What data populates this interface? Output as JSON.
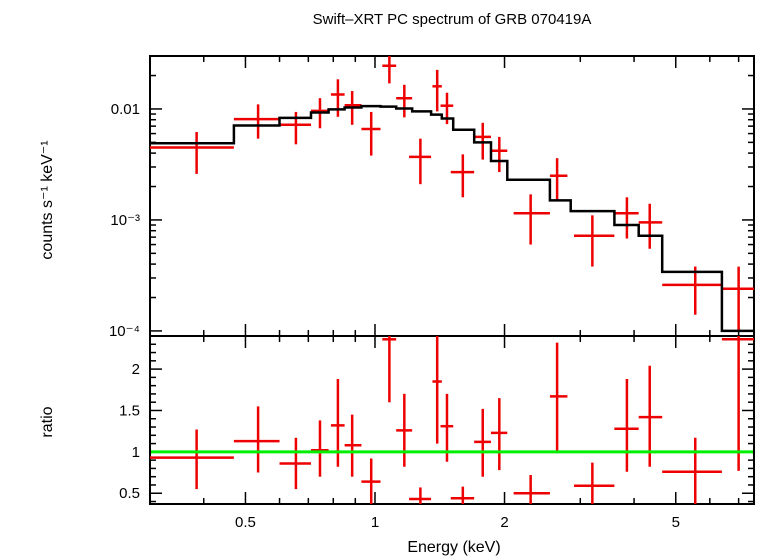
{
  "chart_data": {
    "type": "scatter",
    "title": "Swift–XRT PC spectrum of GRB 070419A",
    "xlabel": "Energy (keV)",
    "xscale": "log",
    "xlim": [
      0.3,
      7.6
    ],
    "x_ticks": [
      {
        "value": 0.5,
        "label": "0.5"
      },
      {
        "value": 1,
        "label": "1"
      },
      {
        "value": 2,
        "label": "2"
      },
      {
        "value": 5,
        "label": "5"
      }
    ],
    "panels": [
      {
        "id": "spectrum",
        "ylabel": "counts s⁻¹ keV⁻¹",
        "yscale": "log",
        "ylim": [
          9e-05,
          0.03
        ],
        "y_ticks": [
          {
            "value": 0.01,
            "label": "0.01"
          },
          {
            "value": 0.001,
            "label": "10⁻³"
          },
          {
            "value": 0.0001,
            "label": "10⁻⁴"
          }
        ],
        "series": [
          {
            "kind": "data",
            "color": "#ee0000",
            "points": [
              {
                "x": 0.385,
                "xlo": 0.3,
                "xhi": 0.47,
                "y": 0.0045,
                "ylo": 0.0026,
                "yhi": 0.0062
              },
              {
                "x": 0.535,
                "xlo": 0.47,
                "xhi": 0.6,
                "y": 0.0081,
                "ylo": 0.0054,
                "yhi": 0.011
              },
              {
                "x": 0.655,
                "xlo": 0.6,
                "xhi": 0.71,
                "y": 0.0072,
                "ylo": 0.0048,
                "yhi": 0.0094
              },
              {
                "x": 0.745,
                "xlo": 0.71,
                "xhi": 0.78,
                "y": 0.0096,
                "ylo": 0.0067,
                "yhi": 0.0125
              },
              {
                "x": 0.82,
                "xlo": 0.79,
                "xhi": 0.85,
                "y": 0.0135,
                "ylo": 0.0085,
                "yhi": 0.0185
              },
              {
                "x": 0.885,
                "xlo": 0.85,
                "xhi": 0.93,
                "y": 0.0108,
                "ylo": 0.0072,
                "yhi": 0.0145
              },
              {
                "x": 0.98,
                "xlo": 0.93,
                "xhi": 1.03,
                "y": 0.0066,
                "ylo": 0.0038,
                "yhi": 0.0094
              },
              {
                "x": 1.08,
                "xlo": 1.04,
                "xhi": 1.12,
                "y": 0.0245,
                "ylo": 0.017,
                "yhi": 0.03
              },
              {
                "x": 1.17,
                "xlo": 1.12,
                "xhi": 1.22,
                "y": 0.0125,
                "ylo": 0.0084,
                "yhi": 0.0165
              },
              {
                "x": 1.275,
                "xlo": 1.2,
                "xhi": 1.35,
                "y": 0.0037,
                "ylo": 0.0021,
                "yhi": 0.0054
              },
              {
                "x": 1.395,
                "xlo": 1.36,
                "xhi": 1.43,
                "y": 0.016,
                "ylo": 0.0095,
                "yhi": 0.0225
              },
              {
                "x": 1.47,
                "xlo": 1.42,
                "xhi": 1.52,
                "y": 0.0107,
                "ylo": 0.0073,
                "yhi": 0.014
              },
              {
                "x": 1.6,
                "xlo": 1.5,
                "xhi": 1.7,
                "y": 0.0027,
                "ylo": 0.0016,
                "yhi": 0.0039
              },
              {
                "x": 1.78,
                "xlo": 1.7,
                "xhi": 1.86,
                "y": 0.0056,
                "ylo": 0.0035,
                "yhi": 0.0075
              },
              {
                "x": 1.945,
                "xlo": 1.86,
                "xhi": 2.03,
                "y": 0.0042,
                "ylo": 0.0027,
                "yhi": 0.0056
              },
              {
                "x": 2.3,
                "xlo": 2.1,
                "xhi": 2.55,
                "y": 0.00115,
                "ylo": 0.0006,
                "yhi": 0.0017
              },
              {
                "x": 2.65,
                "xlo": 2.55,
                "xhi": 2.8,
                "y": 0.0025,
                "ylo": 0.0015,
                "yhi": 0.0036
              },
              {
                "x": 3.2,
                "xlo": 2.9,
                "xhi": 3.6,
                "y": 0.00072,
                "ylo": 0.00038,
                "yhi": 0.0011
              },
              {
                "x": 3.85,
                "xlo": 3.6,
                "xhi": 4.1,
                "y": 0.00115,
                "ylo": 0.00068,
                "yhi": 0.0016
              },
              {
                "x": 4.35,
                "xlo": 4.1,
                "xhi": 4.65,
                "y": 0.00095,
                "ylo": 0.00055,
                "yhi": 0.0014
              },
              {
                "x": 5.55,
                "xlo": 4.65,
                "xhi": 6.4,
                "y": 0.00026,
                "ylo": 0.00014,
                "yhi": 0.00038
              },
              {
                "x": 7.0,
                "xlo": 6.4,
                "xhi": 7.6,
                "y": 0.00024,
                "ylo": 0.0001,
                "yhi": 0.00038
              }
            ]
          },
          {
            "kind": "model-step",
            "color": "#000000",
            "steps": [
              {
                "xlo": 0.3,
                "xhi": 0.47,
                "y": 0.0049
              },
              {
                "xlo": 0.47,
                "xhi": 0.6,
                "y": 0.0071
              },
              {
                "xlo": 0.6,
                "xhi": 0.71,
                "y": 0.0083
              },
              {
                "xlo": 0.71,
                "xhi": 0.78,
                "y": 0.0093
              },
              {
                "xlo": 0.78,
                "xhi": 0.85,
                "y": 0.0099
              },
              {
                "xlo": 0.85,
                "xhi": 0.93,
                "y": 0.0103
              },
              {
                "xlo": 0.93,
                "xhi": 1.03,
                "y": 0.0106
              },
              {
                "xlo": 1.03,
                "xhi": 1.12,
                "y": 0.0105
              },
              {
                "xlo": 1.12,
                "xhi": 1.22,
                "y": 0.0101
              },
              {
                "xlo": 1.22,
                "xhi": 1.35,
                "y": 0.0095
              },
              {
                "xlo": 1.35,
                "xhi": 1.43,
                "y": 0.0089
              },
              {
                "xlo": 1.43,
                "xhi": 1.52,
                "y": 0.0082
              },
              {
                "xlo": 1.52,
                "xhi": 1.7,
                "y": 0.0065
              },
              {
                "xlo": 1.7,
                "xhi": 1.86,
                "y": 0.005
              },
              {
                "xlo": 1.86,
                "xhi": 2.03,
                "y": 0.0034
              },
              {
                "xlo": 2.03,
                "xhi": 2.55,
                "y": 0.0023
              },
              {
                "xlo": 2.55,
                "xhi": 2.85,
                "y": 0.0015
              },
              {
                "xlo": 2.85,
                "xhi": 3.6,
                "y": 0.0012
              },
              {
                "xlo": 3.6,
                "xhi": 4.1,
                "y": 0.0009
              },
              {
                "xlo": 4.1,
                "xhi": 4.65,
                "y": 0.00072
              },
              {
                "xlo": 4.65,
                "xhi": 6.4,
                "y": 0.00034
              },
              {
                "xlo": 6.4,
                "xhi": 7.6,
                "y": 0.0001
              }
            ]
          }
        ]
      },
      {
        "id": "ratio",
        "ylabel": "ratio",
        "yscale": "linear",
        "ylim": [
          0.37,
          2.4
        ],
        "y_ticks": [
          {
            "value": 0.5,
            "label": "0.5"
          },
          {
            "value": 1,
            "label": "1"
          },
          {
            "value": 1.5,
            "label": "1.5"
          },
          {
            "value": 2,
            "label": "2"
          }
        ],
        "series": [
          {
            "kind": "data",
            "color": "#ee0000",
            "points": [
              {
                "x": 0.385,
                "xlo": 0.3,
                "xhi": 0.47,
                "y": 0.93,
                "ylo": 0.55,
                "yhi": 1.27
              },
              {
                "x": 0.535,
                "xlo": 0.47,
                "xhi": 0.6,
                "y": 1.13,
                "ylo": 0.75,
                "yhi": 1.55
              },
              {
                "x": 0.655,
                "xlo": 0.6,
                "xhi": 0.71,
                "y": 0.86,
                "ylo": 0.55,
                "yhi": 1.17
              },
              {
                "x": 0.745,
                "xlo": 0.71,
                "xhi": 0.78,
                "y": 1.02,
                "ylo": 0.7,
                "yhi": 1.38
              },
              {
                "x": 0.82,
                "xlo": 0.79,
                "xhi": 0.85,
                "y": 1.32,
                "ylo": 0.82,
                "yhi": 1.88
              },
              {
                "x": 0.885,
                "xlo": 0.85,
                "xhi": 0.93,
                "y": 1.08,
                "ylo": 0.7,
                "yhi": 1.45
              },
              {
                "x": 0.98,
                "xlo": 0.93,
                "xhi": 1.03,
                "y": 0.64,
                "ylo": 0.37,
                "yhi": 0.92
              },
              {
                "x": 1.08,
                "xlo": 1.04,
                "xhi": 1.12,
                "y": 2.36,
                "ylo": 1.6,
                "yhi": 2.4
              },
              {
                "x": 1.17,
                "xlo": 1.12,
                "xhi": 1.22,
                "y": 1.26,
                "ylo": 0.82,
                "yhi": 1.7
              },
              {
                "x": 1.275,
                "xlo": 1.2,
                "xhi": 1.35,
                "y": 0.43,
                "ylo": 0.37,
                "yhi": 0.57
              },
              {
                "x": 1.395,
                "xlo": 1.36,
                "xhi": 1.43,
                "y": 1.85,
                "ylo": 1.1,
                "yhi": 2.4
              },
              {
                "x": 1.47,
                "xlo": 1.42,
                "xhi": 1.52,
                "y": 1.31,
                "ylo": 0.88,
                "yhi": 1.7
              },
              {
                "x": 1.6,
                "xlo": 1.5,
                "xhi": 1.7,
                "y": 0.44,
                "ylo": 0.37,
                "yhi": 0.58
              },
              {
                "x": 1.78,
                "xlo": 1.7,
                "xhi": 1.86,
                "y": 1.12,
                "ylo": 0.7,
                "yhi": 1.52
              },
              {
                "x": 1.945,
                "xlo": 1.86,
                "xhi": 2.03,
                "y": 1.23,
                "ylo": 0.78,
                "yhi": 1.65
              },
              {
                "x": 2.3,
                "xlo": 2.1,
                "xhi": 2.55,
                "y": 0.5,
                "ylo": 0.37,
                "yhi": 0.72
              },
              {
                "x": 2.65,
                "xlo": 2.55,
                "xhi": 2.8,
                "y": 1.67,
                "ylo": 1.0,
                "yhi": 2.32
              },
              {
                "x": 3.2,
                "xlo": 2.9,
                "xhi": 3.6,
                "y": 0.59,
                "ylo": 0.37,
                "yhi": 0.87
              },
              {
                "x": 3.85,
                "xlo": 3.6,
                "xhi": 4.1,
                "y": 1.28,
                "ylo": 0.76,
                "yhi": 1.88
              },
              {
                "x": 4.35,
                "xlo": 4.1,
                "xhi": 4.65,
                "y": 1.42,
                "ylo": 0.82,
                "yhi": 2.04
              },
              {
                "x": 5.55,
                "xlo": 4.65,
                "xhi": 6.4,
                "y": 0.76,
                "ylo": 0.37,
                "yhi": 1.17
              },
              {
                "x": 7.0,
                "xlo": 6.4,
                "xhi": 7.6,
                "y": 2.36,
                "ylo": 0.77,
                "yhi": 2.4
              }
            ]
          },
          {
            "kind": "reference-line",
            "color": "#00ee00",
            "y": 1
          }
        ]
      }
    ]
  }
}
